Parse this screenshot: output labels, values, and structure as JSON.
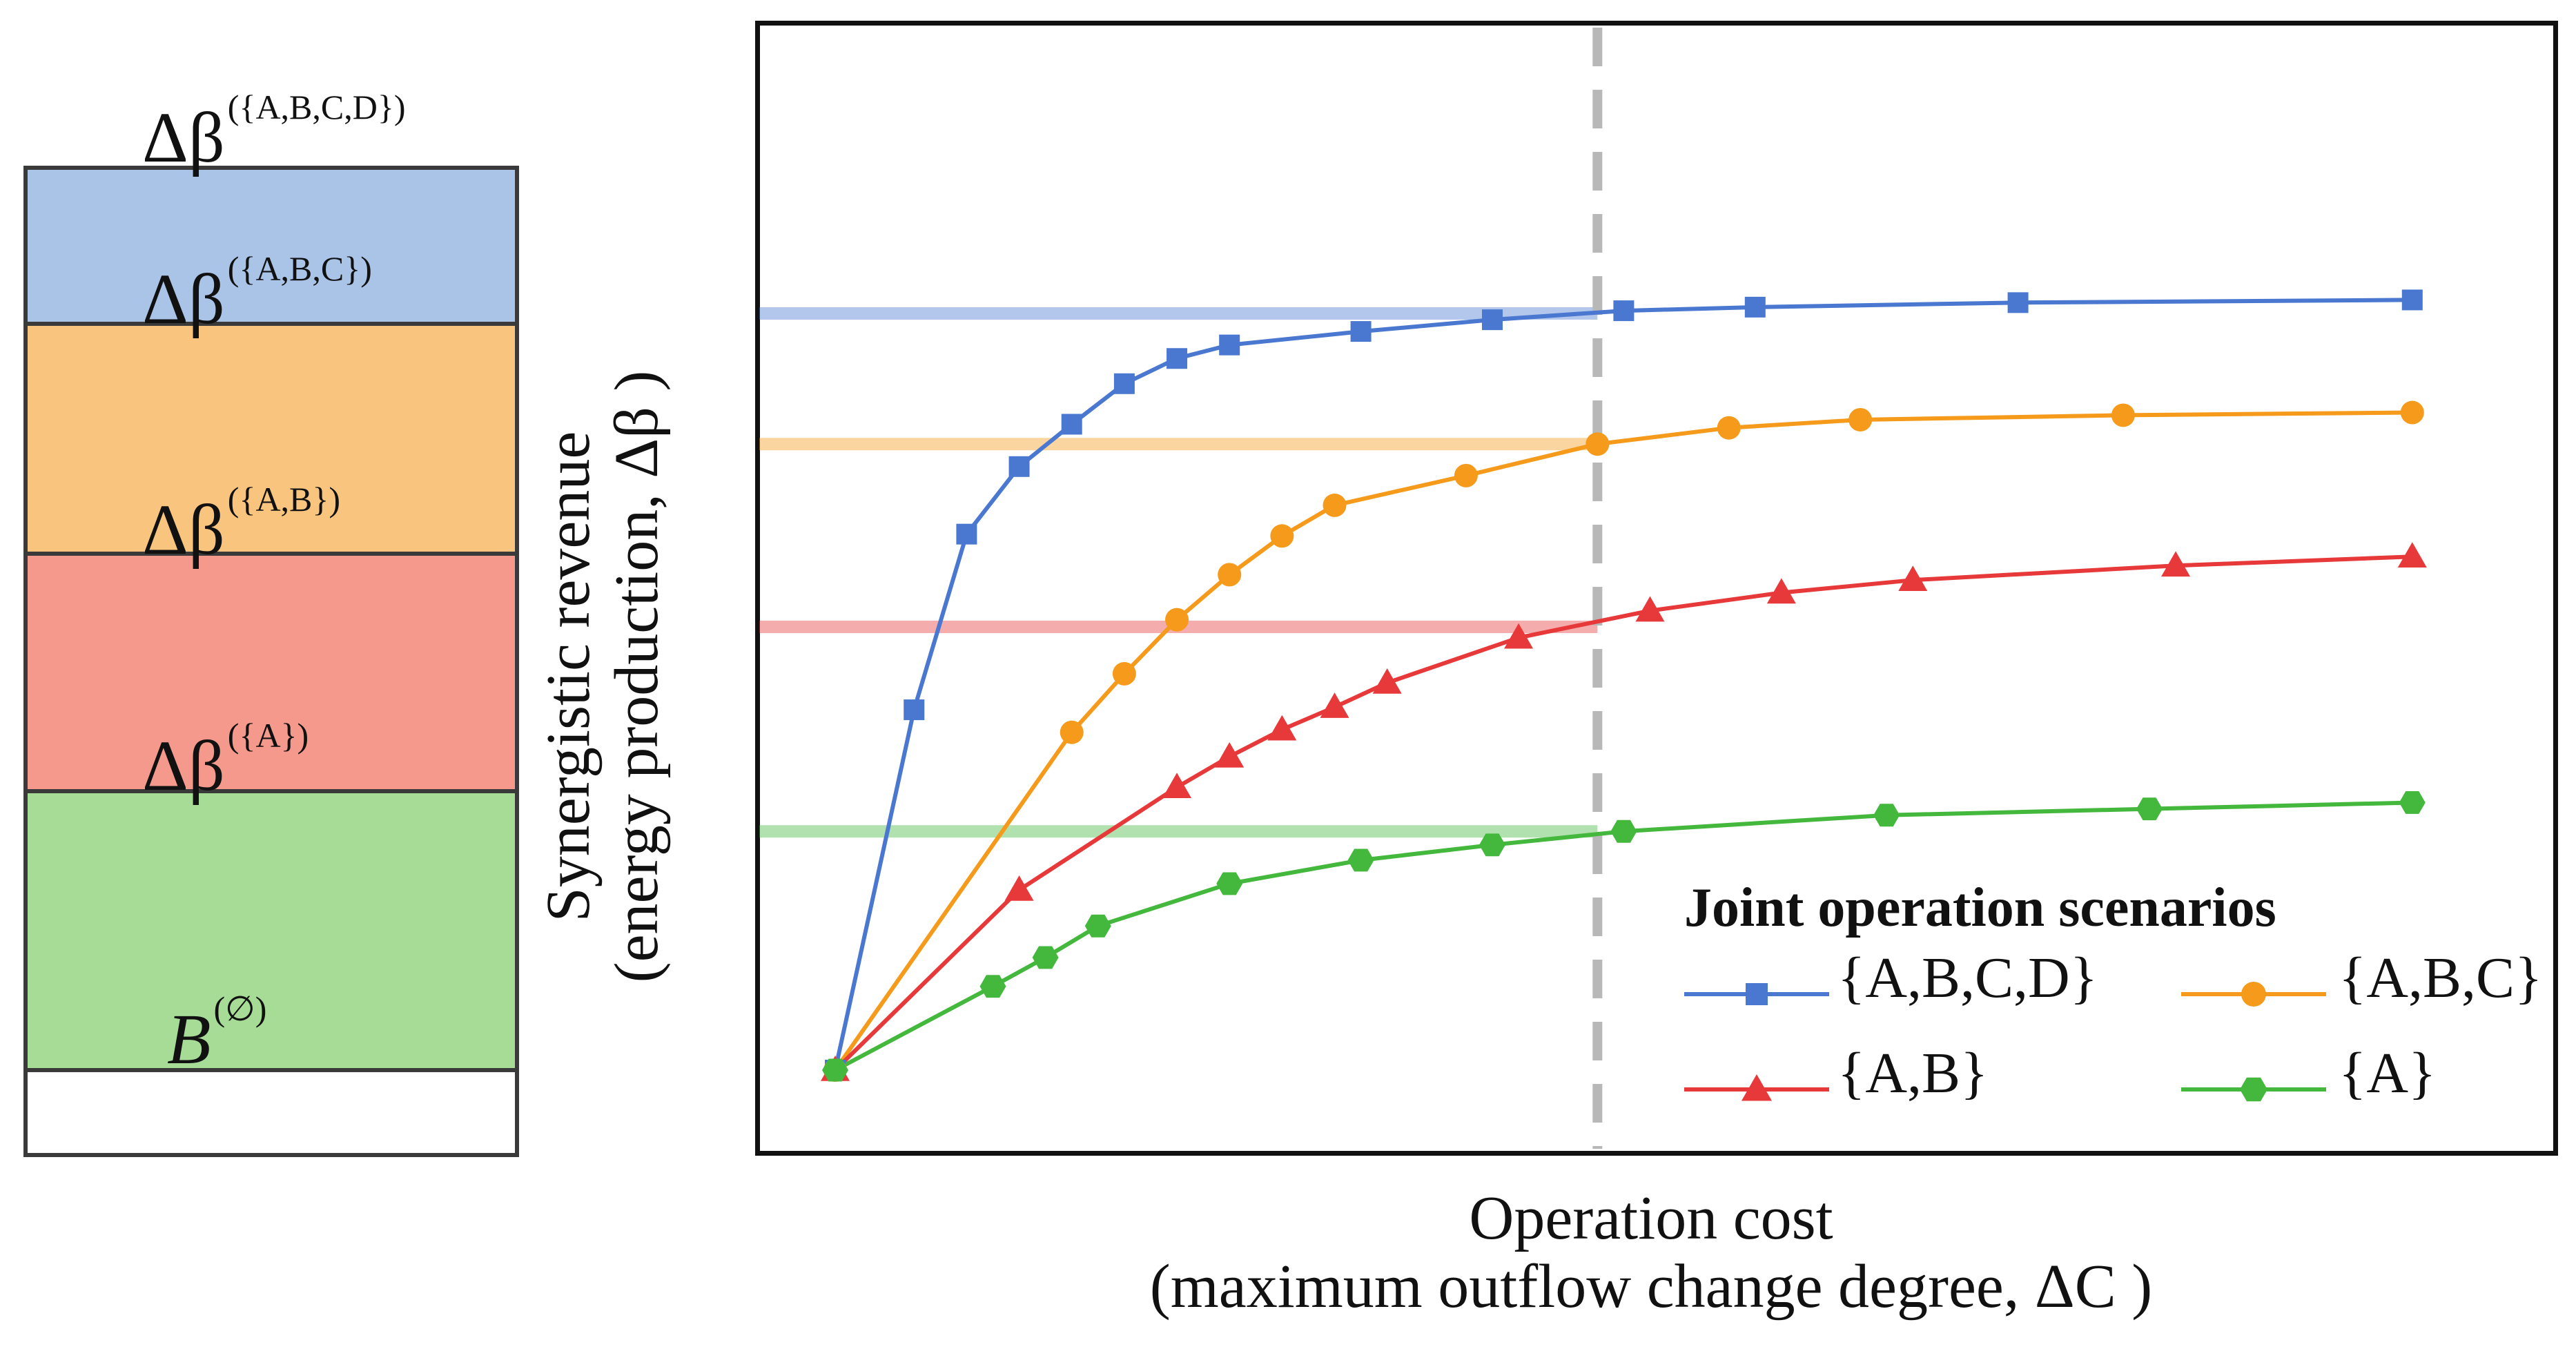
{
  "stack": {
    "segments": [
      {
        "name": "abcd",
        "color": "#aac4e8"
      },
      {
        "name": "abc",
        "color": "#f9c57e"
      },
      {
        "name": "ab",
        "color": "#f4998b"
      },
      {
        "name": "a",
        "color": "#a6dc96"
      },
      {
        "name": "base",
        "color": "#ffffff"
      }
    ],
    "labels": [
      {
        "symbol": "Δβ",
        "sup": "({A,B,C,D})"
      },
      {
        "symbol": "Δβ",
        "sup": "({A,B,C})"
      },
      {
        "symbol": "Δβ",
        "sup": "({A,B})"
      },
      {
        "symbol": "Δβ",
        "sup": "({A})"
      },
      {
        "symbol": "B",
        "sup": "(∅)"
      }
    ]
  },
  "chart_data": {
    "type": "line",
    "title": "",
    "ylabel_line1": "Synergistic revenue",
    "ylabel_line2": "(energy production, Δβ )",
    "xlabel_line1": "Operation cost",
    "xlabel_line2": "(maximum outflow change degree, ΔC )",
    "xlim": [
      0,
      12.5
    ],
    "ylim": [
      0,
      10.5
    ],
    "cutoff_x": 5.8,
    "grid": false,
    "legend_title": "Joint operation scenarios",
    "legend_position": "bottom-right",
    "series": [
      {
        "name": "{A,B,C,D}",
        "color": "#4a78d0",
        "marker": "square",
        "x": [
          0,
          0.6,
          1,
          1.4,
          1.8,
          2.2,
          2.6,
          3,
          4,
          5,
          6,
          7,
          9,
          12
        ],
        "y": [
          0,
          4.0,
          5.95,
          6.7,
          7.17,
          7.62,
          7.9,
          8.05,
          8.2,
          8.33,
          8.43,
          8.47,
          8.52,
          8.55
        ],
        "ref_y": 8.4
      },
      {
        "name": "{A,B,C}",
        "color": "#f59a1b",
        "marker": "circle",
        "x": [
          0,
          1.8,
          2.2,
          2.6,
          3,
          3.4,
          3.8,
          4.8,
          5.8,
          6.8,
          7.8,
          9.8,
          12
        ],
        "y": [
          0,
          3.75,
          4.4,
          5.0,
          5.5,
          5.93,
          6.27,
          6.6,
          6.95,
          7.13,
          7.22,
          7.27,
          7.3
        ],
        "ref_y": 6.95
      },
      {
        "name": "{A,B}",
        "color": "#e8393a",
        "marker": "triangle",
        "x": [
          0,
          1.4,
          2.6,
          3,
          3.4,
          3.8,
          4.2,
          5.2,
          6.2,
          7.2,
          8.2,
          10.2,
          12
        ],
        "y": [
          0,
          2.0,
          3.14,
          3.48,
          3.78,
          4.03,
          4.3,
          4.8,
          5.1,
          5.3,
          5.44,
          5.6,
          5.7
        ],
        "ref_y": 4.92
      },
      {
        "name": "{A}",
        "color": "#43b83d",
        "marker": "hexagon",
        "x": [
          0,
          1.2,
          1.6,
          2,
          3,
          4,
          5,
          6,
          8,
          10,
          12
        ],
        "y": [
          0,
          0.93,
          1.25,
          1.6,
          2.07,
          2.33,
          2.5,
          2.65,
          2.83,
          2.9,
          2.97
        ],
        "ref_y": 2.65
      }
    ]
  }
}
